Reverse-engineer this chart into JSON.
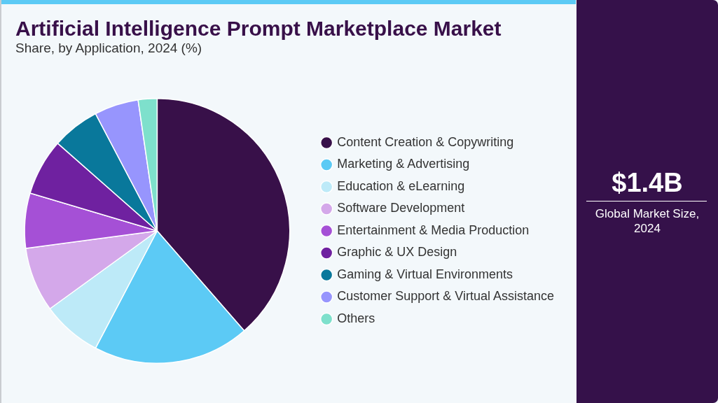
{
  "chart_data": [
    {
      "type": "pie",
      "title": "Artificial Intelligence Prompt Marketplace Market",
      "subtitle": "Share, by Application, 2024 (%)",
      "categories": [
        "Content Creation & Copywriting",
        "Marketing & Advertising",
        "Education & eLearning",
        "Software Development",
        "Entertainment & Media Production",
        "Graphic & UX Design",
        "Gaming & Virtual Environments",
        "Customer Support & Virtual Assistance",
        "Others"
      ],
      "values": [
        38.6,
        19.1,
        7.3,
        7.9,
        6.7,
        6.9,
        5.8,
        5.4,
        2.3
      ],
      "colors": [
        "#381049",
        "#5ccaf5",
        "#bdeaf8",
        "#d4a8ea",
        "#a550d6",
        "#6f21a0",
        "#09789b",
        "#9795fd",
        "#7ee0cc"
      ],
      "legend": "right"
    },
    {
      "type": "other",
      "annotations": [
        "$1.4B",
        "Global Market Size, 2024"
      ]
    }
  ]
}
